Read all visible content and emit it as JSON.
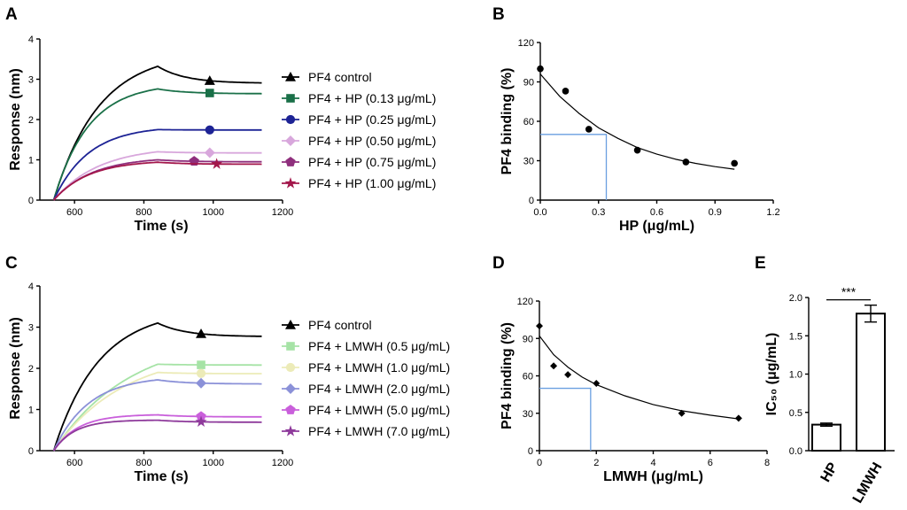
{
  "panel_labels": {
    "a": "A",
    "b": "B",
    "c": "C",
    "d": "D",
    "e": "E"
  },
  "chart_data": [
    {
      "id": "A",
      "type": "line",
      "xlabel": "Time (s)",
      "ylabel": "Response (nm)",
      "xlim": [
        500,
        1200
      ],
      "ylim": [
        0,
        4
      ],
      "xticks": [
        600,
        800,
        1000,
        1200
      ],
      "yticks": [
        0,
        1,
        2,
        3,
        4
      ],
      "association_start": 540,
      "dissociation_start": 840,
      "end": 1140,
      "marker_x": [
        990,
        990,
        990,
        990,
        945,
        1010
      ],
      "series": [
        {
          "name": "PF4 control",
          "peak": 3.32,
          "final": 2.9,
          "tau": 130,
          "color": "#000000",
          "marker": "triangle"
        },
        {
          "name": "PF4 + HP (0.13 μg/mL)",
          "peak": 2.76,
          "final": 2.64,
          "tau": 100,
          "color": "#1a7048",
          "marker": "square"
        },
        {
          "name": "PF4 + HP (0.25 μg/mL)",
          "peak": 1.75,
          "final": 1.74,
          "tau": 100,
          "color": "#1d2395",
          "marker": "circle"
        },
        {
          "name": "PF4 + HP (0.50 μg/mL)",
          "peak": 1.2,
          "final": 1.17,
          "tau": 130,
          "color": "#d8a7dc",
          "marker": "diamond"
        },
        {
          "name": "PF4 + HP (0.75 μg/mL)",
          "peak": 1.0,
          "final": 0.95,
          "tau": 110,
          "color": "#8f2f7d",
          "marker": "pentagon"
        },
        {
          "name": "PF4 + HP (1.00 μg/mL)",
          "peak": 0.94,
          "final": 0.89,
          "tau": 100,
          "color": "#a3174b",
          "marker": "star"
        }
      ]
    },
    {
      "id": "B",
      "type": "scatter",
      "xlabel": "HP (μg/mL)",
      "ylabel": "PF4 binding (%)",
      "xlim": [
        0,
        1.2
      ],
      "ylim": [
        0,
        120
      ],
      "xticks": [
        "0.0",
        "0.3",
        "0.6",
        "0.9",
        "1.2"
      ],
      "yticks": [
        "0",
        "30",
        "60",
        "90",
        "120"
      ],
      "points": [
        [
          0,
          100
        ],
        [
          0.13,
          83
        ],
        [
          0.25,
          54
        ],
        [
          0.5,
          38
        ],
        [
          0.75,
          29
        ],
        [
          1.0,
          28
        ]
      ],
      "fit_curve": [
        [
          0,
          96
        ],
        [
          0.1,
          79
        ],
        [
          0.2,
          66
        ],
        [
          0.3,
          55
        ],
        [
          0.4,
          47
        ],
        [
          0.5,
          40
        ],
        [
          0.6,
          35
        ],
        [
          0.7,
          31
        ],
        [
          0.8,
          28
        ],
        [
          0.9,
          25.5
        ],
        [
          1.0,
          23.5
        ]
      ],
      "ic50": 0.34,
      "half_max": 50,
      "marker": "circle"
    },
    {
      "id": "C",
      "type": "line",
      "xlabel": "Time (s)",
      "ylabel": "Response (nm)",
      "xlim": [
        500,
        1200
      ],
      "ylim": [
        0,
        4
      ],
      "xticks": [
        600,
        800,
        1000,
        1200
      ],
      "yticks": [
        0,
        1,
        2,
        3,
        4
      ],
      "association_start": 540,
      "dissociation_start": 840,
      "end": 1140,
      "marker_x": [
        965,
        965,
        965,
        965,
        965,
        965
      ],
      "series": [
        {
          "name": "PF4 control",
          "peak": 3.1,
          "final": 2.77,
          "tau": 130,
          "color": "#000000",
          "marker": "triangle"
        },
        {
          "name": "PF4 + LMWH (0.5 μg/mL)",
          "peak": 2.1,
          "final": 2.08,
          "tau": 220,
          "color": "#a6e3a6",
          "marker": "square"
        },
        {
          "name": "PF4 + LMWH (1.0 μg/mL)",
          "peak": 1.9,
          "final": 1.87,
          "tau": 200,
          "color": "#ecebb8",
          "marker": "circle"
        },
        {
          "name": "PF4 + LMWH (2.0 μg/mL)",
          "peak": 1.72,
          "final": 1.62,
          "tau": 100,
          "color": "#8b91d8",
          "marker": "diamond"
        },
        {
          "name": "PF4 + LMWH (5.0 μg/mL)",
          "peak": 0.87,
          "final": 0.82,
          "tau": 70,
          "color": "#c95fdb",
          "marker": "pentagon"
        },
        {
          "name": "PF4 + LMWH (7.0 μg/mL)",
          "peak": 0.74,
          "final": 0.69,
          "tau": 60,
          "color": "#8e3a9b",
          "marker": "star"
        }
      ]
    },
    {
      "id": "D",
      "type": "scatter",
      "xlabel": "LMWH (μg/mL)",
      "ylabel": "PF4 binding (%)",
      "xlim": [
        0,
        8
      ],
      "ylim": [
        0,
        120
      ],
      "xticks": [
        "0",
        "2",
        "4",
        "6",
        "8"
      ],
      "yticks": [
        "0",
        "30",
        "60",
        "90",
        "120"
      ],
      "points": [
        [
          0,
          100
        ],
        [
          0.5,
          68
        ],
        [
          1.0,
          61
        ],
        [
          2.0,
          54
        ],
        [
          5.0,
          30
        ],
        [
          7.0,
          26
        ]
      ],
      "fit_curve": [
        [
          0,
          92
        ],
        [
          0.5,
          77
        ],
        [
          1,
          67
        ],
        [
          1.5,
          59
        ],
        [
          2,
          53
        ],
        [
          3,
          44
        ],
        [
          4,
          37
        ],
        [
          5,
          32
        ],
        [
          6,
          28.5
        ],
        [
          7,
          25.5
        ]
      ],
      "ic50": 1.8,
      "half_max": 50,
      "marker": "diamond"
    },
    {
      "id": "E",
      "type": "bar",
      "ylabel": "IC₅₀ (μg/mL)",
      "categories": [
        "HP",
        "LMWH"
      ],
      "values": [
        0.34,
        1.79
      ],
      "errors": [
        0.02,
        0.11
      ],
      "ylim": [
        0,
        2.0
      ],
      "yticks": [
        "0.0",
        "0.5",
        "1.0",
        "1.5",
        "2.0"
      ],
      "significance": "***"
    }
  ]
}
